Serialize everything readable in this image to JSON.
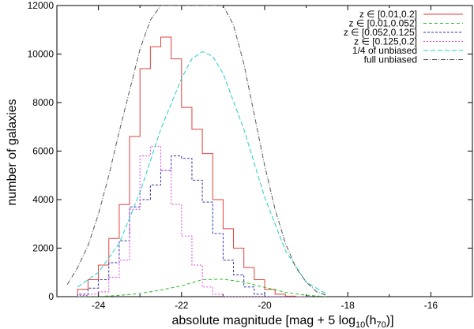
{
  "chart_data": {
    "type": "line",
    "title": "",
    "xlabel": "absolute magnitude [mag + 5 log",
    "xlabel_sub": "10",
    "xlabel_tail": "(h",
    "xlabel_sub2": "70",
    "xlabel_end": ")]",
    "ylabel": "number of galaxies",
    "xlim": [
      -25,
      -15
    ],
    "ylim": [
      0,
      12000
    ],
    "x_ticks": [
      -24,
      -22,
      -20,
      -18,
      -16
    ],
    "x_tick_labels": [
      "-24",
      "-22",
      "-20",
      "-18",
      "-16"
    ],
    "y_ticks": [
      0,
      2000,
      4000,
      6000,
      8000,
      10000,
      12000
    ],
    "y_tick_labels": [
      "0",
      "2000",
      "4000",
      "6000",
      "8000",
      "10000",
      "12000"
    ],
    "legend_position": "top-right",
    "grid": false,
    "bin_edges": [
      -24.5,
      -24.25,
      -24.0,
      -23.75,
      -23.5,
      -23.25,
      -23.0,
      -22.75,
      -22.5,
      -22.25,
      -22.0,
      -21.75,
      -21.5,
      -21.25,
      -21.0,
      -20.75,
      -20.5,
      -20.25,
      -20.0,
      -19.75,
      -19.5,
      -19.25,
      -19.0
    ],
    "series": [
      {
        "name": "z ∈ [0.01,0.2]",
        "kind": "histogram",
        "color": "#e0403a",
        "dash": "",
        "values": [
          300,
          700,
          1300,
          2400,
          3800,
          6600,
          9400,
          10300,
          10700,
          9800,
          7800,
          6900,
          5900,
          4000,
          2800,
          2000,
          1200,
          700,
          300,
          100,
          20,
          0
        ]
      },
      {
        "name": "z ∈ [0.01,0.052]",
        "kind": "curve",
        "color": "#22bb22",
        "dash": "4,3",
        "x": [
          -24.5,
          -24.0,
          -23.5,
          -23.0,
          -22.5,
          -22.0,
          -21.5,
          -21.0,
          -20.5,
          -20.0,
          -19.5,
          -19.0,
          -18.5
        ],
        "y": [
          0,
          10,
          50,
          130,
          270,
          450,
          700,
          720,
          600,
          380,
          180,
          60,
          0
        ]
      },
      {
        "name": "z ∈ [0.052,0.125]",
        "kind": "histogram",
        "color": "#3333aa",
        "dash": "3,2",
        "values": [
          100,
          350,
          700,
          1400,
          2300,
          3700,
          4000,
          4600,
          5200,
          5800,
          5700,
          4800,
          3900,
          2600,
          1500,
          900,
          400,
          100,
          0,
          0,
          0,
          0
        ]
      },
      {
        "name": "z ∈ [0.125,0.2]",
        "kind": "histogram",
        "color": "#e040e0",
        "dash": "2,2",
        "values": [
          50,
          100,
          200,
          800,
          1500,
          3600,
          5800,
          6200,
          5200,
          3800,
          2500,
          1300,
          400,
          100,
          0,
          0,
          0,
          0,
          0,
          0,
          0,
          0
        ]
      },
      {
        "name": "1/4 of unbiased",
        "kind": "curve",
        "color": "#22cccc",
        "dash": "6,3",
        "x": [
          -24.5,
          -24.0,
          -23.5,
          -23.0,
          -22.5,
          -22.0,
          -21.75,
          -21.5,
          -21.25,
          -21.0,
          -20.5,
          -20.0,
          -19.5,
          -19.0,
          -18.5
        ],
        "y": [
          400,
          1000,
          2200,
          4300,
          6900,
          9000,
          9800,
          10100,
          9900,
          9200,
          6900,
          4100,
          1900,
          600,
          100
        ]
      },
      {
        "name": "full unbiased",
        "kind": "curve",
        "color": "#555555",
        "dash": "6,2,1,2",
        "x": [
          -24.75,
          -24.5,
          -24.25,
          -24.0,
          -23.75,
          -23.5,
          -23.25,
          -23.0,
          -22.75,
          -22.5,
          -21.0,
          -20.75,
          -20.5,
          -20.25,
          -20.0,
          -19.75,
          -19.5,
          -19.25,
          -19.0,
          -18.75,
          -18.5
        ],
        "y": [
          500,
          1200,
          2100,
          3400,
          5000,
          6800,
          8500,
          10200,
          11400,
          12000,
          12000,
          11200,
          9600,
          7500,
          5400,
          3600,
          2200,
          1200,
          600,
          200,
          50
        ]
      }
    ]
  }
}
